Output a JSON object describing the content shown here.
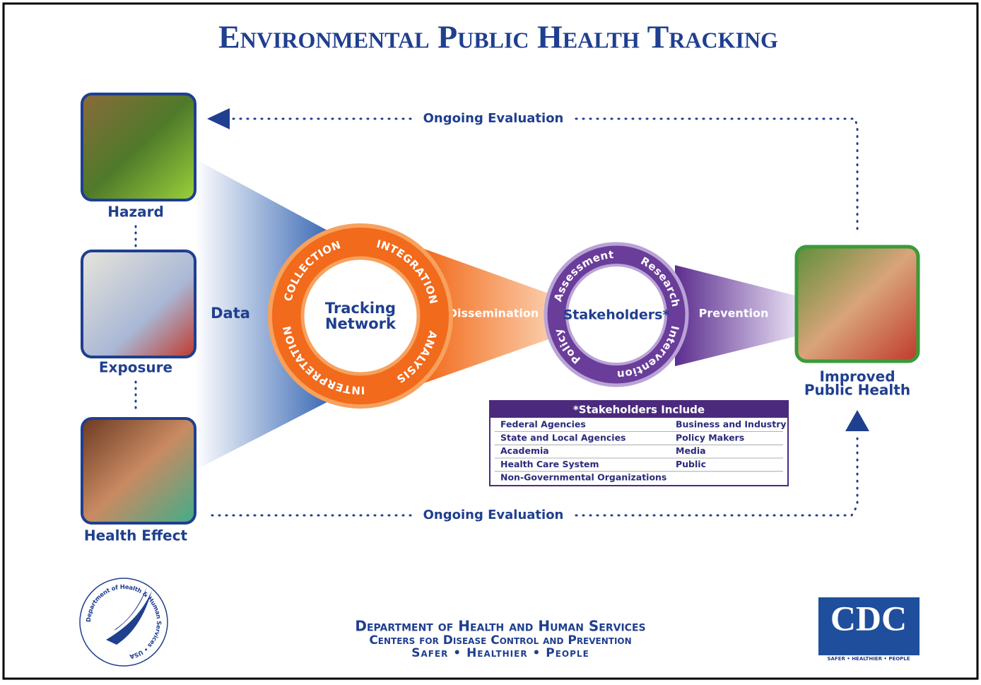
{
  "title": "Environmental Public Health Tracking",
  "evaluation": {
    "top": "Ongoing Evaluation",
    "bottom": "Ongoing Evaluation"
  },
  "sources": [
    {
      "label": "Hazard"
    },
    {
      "label": "Exposure"
    },
    {
      "label": "Health Effect"
    }
  ],
  "data_label": "Data",
  "tracking_network": {
    "label_lines": [
      "Tracking",
      "Network"
    ],
    "steps": [
      "COLLECTION",
      "INTEGRATION",
      "ANALYSIS",
      "INTERPRETATION"
    ]
  },
  "dissemination": "Dissemination",
  "stakeholders": {
    "label": "Stakeholders*",
    "activities": [
      "Assessment",
      "Research",
      "Intervention",
      "Policy"
    ]
  },
  "prevention": "Prevention",
  "outcome": {
    "label_lines": [
      "Improved",
      "Public Health"
    ]
  },
  "stakeholder_table": {
    "title": "*Stakeholders Include",
    "rows": [
      [
        "Federal Agencies",
        "Business and Industry"
      ],
      [
        "State and Local Agencies",
        "Policy Makers"
      ],
      [
        "Academia",
        "Media"
      ],
      [
        "Health Care System",
        "Public"
      ],
      [
        "Non-Governmental Organizations"
      ]
    ]
  },
  "footer": {
    "lines": [
      "Department of Health and Human Services",
      "Centers for Disease Control and Prevention",
      "Safer • Healthier • People"
    ]
  },
  "logos": {
    "hhs_seal": "Department of Health & Human Services • USA",
    "cdc": "CDC",
    "cdc_tagline": "SAFER • HEALTHIER • PEOPLE"
  }
}
